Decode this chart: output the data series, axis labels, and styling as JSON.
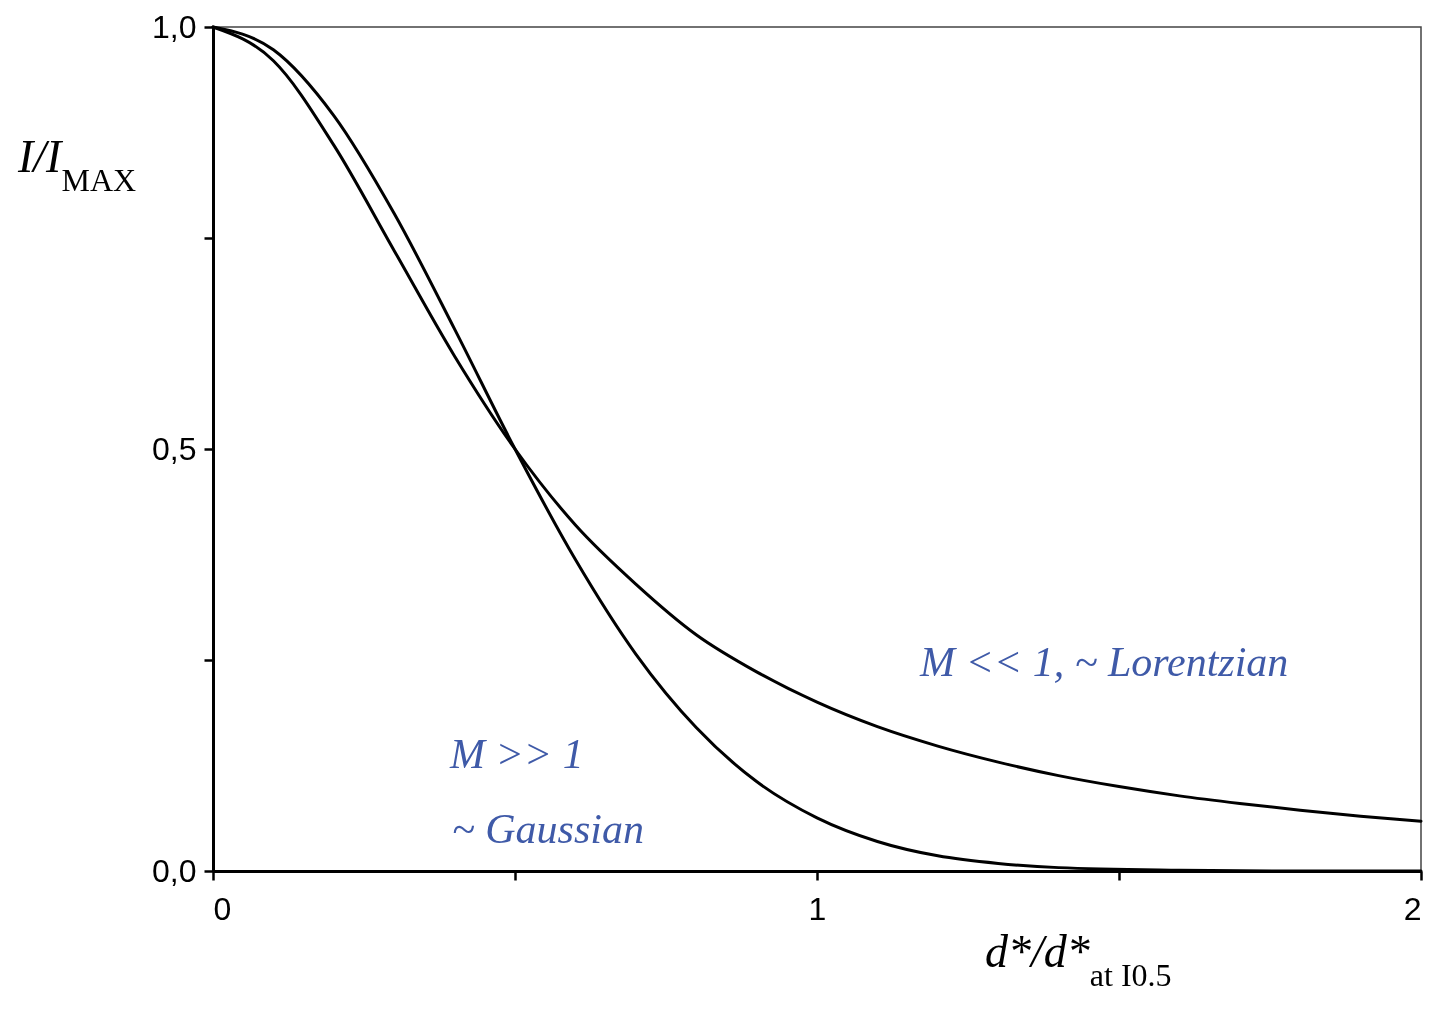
{
  "chart_data": {
    "type": "line",
    "xlabel": "d*/d*$_{at I0.5}$",
    "ylabel": "I/I$_{MAX}$",
    "xlim": [
      0,
      2
    ],
    "ylim": [
      0,
      1
    ],
    "xticks": [
      0,
      {
        "value": 0.5,
        "label": null
      },
      1,
      {
        "value": 1.5,
        "label": null
      },
      2
    ],
    "yticks": [
      {
        "value": 0,
        "label": "0,0"
      },
      {
        "value": 0.25,
        "label": null
      },
      {
        "value": 0.5,
        "label": "0,5"
      },
      {
        "value": 0.75,
        "label": null
      },
      {
        "value": 1,
        "label": "1,0"
      }
    ],
    "series": [
      {
        "color": "#000000",
        "x": [
          0,
          0.1,
          0.2,
          0.3,
          0.4,
          0.5,
          0.6,
          0.7,
          0.8,
          0.9,
          1.0,
          1.1,
          1.2,
          1.3,
          1.4,
          1.6,
          1.8,
          2.0
        ],
        "values": [
          1,
          0.973,
          0.895,
          0.779,
          0.642,
          0.5,
          0.369,
          0.257,
          0.17,
          0.106,
          0.063,
          0.035,
          0.018,
          0.009,
          0.004,
          0.001,
          0,
          0
        ]
      },
      {
        "color": "#000000",
        "x": [
          0,
          0.1,
          0.2,
          0.3,
          0.4,
          0.5,
          0.6,
          0.7,
          0.8,
          0.9,
          1.0,
          1.1,
          1.2,
          1.3,
          1.4,
          1.5,
          1.6,
          1.7,
          1.8,
          1.9,
          2.0
        ],
        "values": [
          1,
          0.96,
          0.86,
          0.735,
          0.61,
          0.5,
          0.41,
          0.34,
          0.28,
          0.236,
          0.2,
          0.171,
          0.148,
          0.129,
          0.113,
          0.1,
          0.089,
          0.08,
          0.072,
          0.065,
          0.059
        ]
      }
    ],
    "annotations": [
      "M >> 1",
      "~ Gaussian",
      "M << 1, ~ Lorentzian"
    ]
  }
}
